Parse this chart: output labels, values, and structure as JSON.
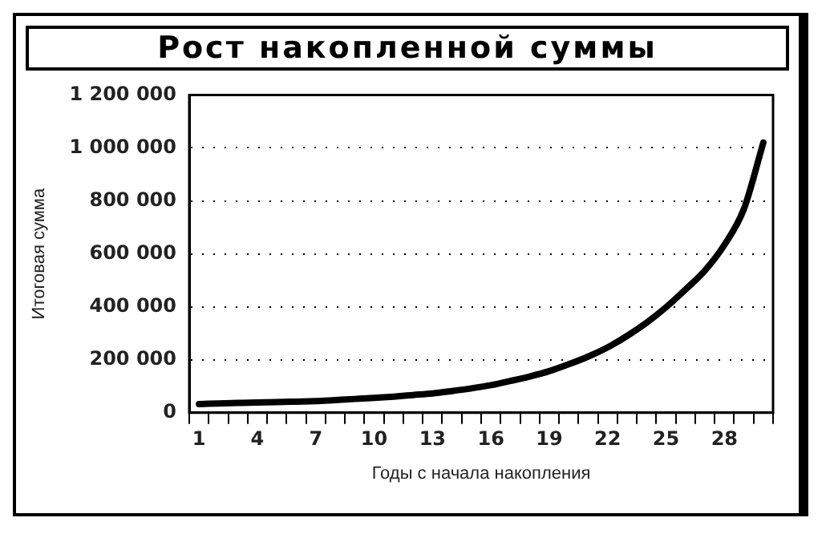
{
  "chart_data": {
    "type": "line",
    "title": "Рост накопленной суммы",
    "xlabel": "Годы с начала накопления",
    "ylabel": "Итоговая сумма",
    "categories": [
      "1",
      null,
      null,
      "4",
      null,
      null,
      "7",
      null,
      null,
      "10",
      null,
      null,
      "13",
      null,
      null,
      "16",
      null,
      null,
      "19",
      null,
      null,
      "22",
      null,
      null,
      "25",
      null,
      null,
      "28",
      null,
      null
    ],
    "series": [
      {
        "color": "#000000",
        "values": [
          33000,
          35000,
          37000,
          39000,
          40000,
          42000,
          44000,
          48000,
          52000,
          56000,
          61000,
          67000,
          73000,
          82000,
          92000,
          104000,
          120000,
          137000,
          157000,
          183000,
          212000,
          247000,
          290000,
          340000,
          398000,
          465000,
          537000,
          634000,
          769000,
          1020000
        ]
      }
    ],
    "ylim": [
      0,
      1200000
    ],
    "yticks": [
      {
        "value": 0,
        "label": "0"
      },
      {
        "value": 200000,
        "label": "200 000"
      },
      {
        "value": 400000,
        "label": "400 000"
      },
      {
        "value": 600000,
        "label": "600 000"
      },
      {
        "value": 800000,
        "label": "800 000"
      },
      {
        "value": 1000000,
        "label": "1 000 000"
      },
      {
        "value": 1200000,
        "label": "1 200 000"
      }
    ],
    "grid": "y",
    "legend": false,
    "marker": "none",
    "line_style": "solid"
  }
}
